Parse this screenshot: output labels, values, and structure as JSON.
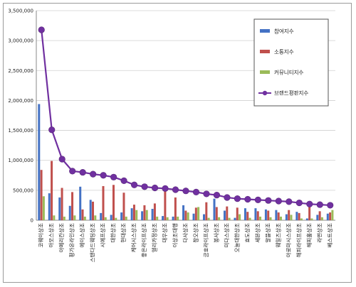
{
  "chart_data": {
    "type": "bar",
    "title": "",
    "xlabel": "",
    "ylabel": "",
    "ylim": [
      0,
      3500000
    ],
    "yticks": [
      "0",
      "500,000",
      "1,000,000",
      "1,500,000",
      "2,000,000",
      "2,500,000",
      "3,000,000",
      "3,500,000"
    ],
    "grid": true,
    "legend_position": "top-right",
    "categories": [
      "코웨이상조",
      "아모스상조",
      "아메리칸상조",
      "평가온라인상조",
      "에이스상조",
      "스탠다드웨딩상조",
      "시에프상조",
      "대한상조",
      "현대상조",
      "케어시스상조",
      "좋은라이프상조",
      "엘리카정상조",
      "대우상조",
      "이상조대행",
      "다사상조",
      "참오상조",
      "금호라이프상조",
      "봉사상조",
      "미다스상조",
      "오늘대한상조",
      "효도상조",
      "세븐상조",
      "알뜰상조",
      "웨일즈상조",
      "아로마시스상조",
      "해피라이프상조",
      "해피홀상조",
      "라면상조",
      "베스트상조"
    ],
    "series": [
      {
        "name": "참여지수",
        "color": "#4472c4",
        "kind": "bar",
        "values": [
          1940000,
          450000,
          380000,
          240000,
          560000,
          340000,
          120000,
          90000,
          130000,
          200000,
          150000,
          190000,
          70000,
          60000,
          250000,
          110000,
          100000,
          360000,
          160000,
          40000,
          200000,
          200000,
          180000,
          170000,
          100000,
          140000,
          30000,
          90000,
          110000
        ]
      },
      {
        "name": "소통지수",
        "color": "#c0504d",
        "kind": "bar",
        "values": [
          840000,
          990000,
          540000,
          470000,
          180000,
          310000,
          570000,
          590000,
          460000,
          260000,
          250000,
          280000,
          480000,
          380000,
          160000,
          210000,
          300000,
          220000,
          230000,
          210000,
          140000,
          150000,
          160000,
          130000,
          170000,
          120000,
          270000,
          150000,
          130000
        ]
      },
      {
        "name": "커뮤니티지수",
        "color": "#9bbb59",
        "kind": "bar",
        "values": [
          400000,
          80000,
          60000,
          80000,
          60000,
          80000,
          50000,
          40000,
          60000,
          170000,
          170000,
          60000,
          50000,
          60000,
          130000,
          220000,
          40000,
          50000,
          40000,
          100000,
          40000,
          60000,
          50000,
          60000,
          90000,
          30000,
          30000,
          50000,
          170000
        ]
      },
      {
        "name": "브랜드평판지수",
        "color": "#7030a0",
        "kind": "line",
        "values": [
          3180000,
          1510000,
          1020000,
          820000,
          800000,
          770000,
          750000,
          720000,
          660000,
          590000,
          560000,
          540000,
          530000,
          510000,
          490000,
          470000,
          440000,
          420000,
          380000,
          360000,
          350000,
          340000,
          330000,
          320000,
          310000,
          290000,
          270000,
          260000,
          250000
        ]
      }
    ]
  }
}
